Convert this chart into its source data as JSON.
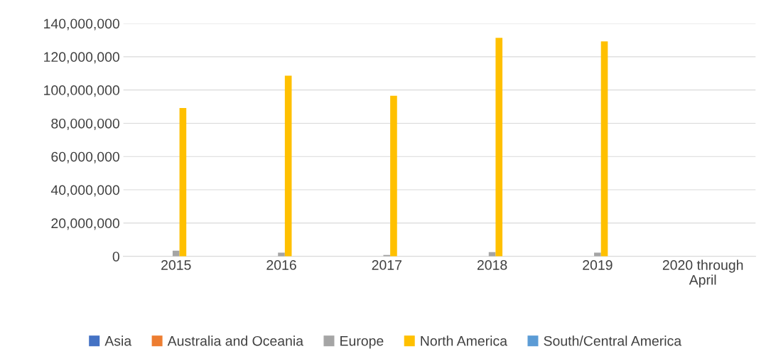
{
  "chart_data": {
    "type": "bar",
    "categories": [
      "2015",
      "2016",
      "2017",
      "2018",
      "2019",
      "2020 through\nApril"
    ],
    "series": [
      {
        "name": "Asia",
        "color": "#4472c4",
        "values": [
          0,
          null,
          0,
          null,
          null,
          0
        ]
      },
      {
        "name": "Australia and Oceania",
        "color": "#ed7d31",
        "values": [
          0,
          0,
          0,
          0,
          0,
          0
        ]
      },
      {
        "name": "Europe",
        "color": "#a5a5a5",
        "values": [
          3400000.0,
          2200000.0,
          800000.0,
          2500000.0,
          2200000.0,
          0
        ]
      },
      {
        "name": "North America",
        "color": "#ffc000",
        "values": [
          89200000.0,
          108600000.0,
          96500000.0,
          131400000.0,
          129200000.0,
          0
        ]
      },
      {
        "name": "South/Central America",
        "color": "#5b9bd5",
        "values": [
          0,
          0,
          0,
          0,
          0,
          0
        ]
      }
    ],
    "ylim": [
      0,
      140000000
    ],
    "yticks": [
      {
        "value": 0,
        "label": "0"
      },
      {
        "value": 20000000,
        "label": "20,000,000"
      },
      {
        "value": 40000000,
        "label": "40,000,000"
      },
      {
        "value": 60000000,
        "label": "60,000,000"
      },
      {
        "value": 80000000,
        "label": "80,000,000"
      },
      {
        "value": 100000000,
        "label": "100,000,000"
      },
      {
        "value": 120000000,
        "label": "120,000,000"
      },
      {
        "value": 140000000,
        "label": "140,000,000"
      }
    ],
    "grid": "y",
    "legend": "bottom"
  }
}
